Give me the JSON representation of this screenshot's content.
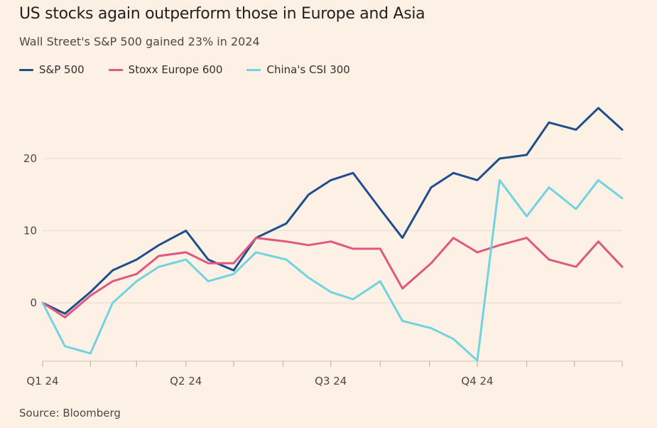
{
  "header": {
    "title": "US stocks again outperform those in Europe and Asia",
    "subtitle": "Wall Street's S&P 500 gained 23% in 2024"
  },
  "footer": {
    "source": "Source: Bloomberg"
  },
  "chart_data": {
    "type": "line",
    "title": "US stocks again outperform those in Europe and Asia",
    "subtitle": "Wall Street's S&P 500 gained 23% in 2024",
    "xlabel": "",
    "ylabel": "",
    "x_tick_labels": [
      "Q1 24",
      "Q2 24",
      "Q3 24",
      "Q4 24"
    ],
    "y_ticks": [
      0,
      10,
      20
    ],
    "ylim": [
      -8,
      27
    ],
    "grid": true,
    "legend": "top-left",
    "x": [
      "2024-01-02",
      "2024-01-16",
      "2024-02-01",
      "2024-02-15",
      "2024-03-01",
      "2024-03-15",
      "2024-04-01",
      "2024-04-15",
      "2024-05-01",
      "2024-05-15",
      "2024-06-03",
      "2024-06-17",
      "2024-07-01",
      "2024-07-15",
      "2024-08-01",
      "2024-08-15",
      "2024-09-02",
      "2024-09-16",
      "2024-10-01",
      "2024-10-15",
      "2024-11-01",
      "2024-11-15",
      "2024-12-02",
      "2024-12-16",
      "2024-12-31"
    ],
    "series": [
      {
        "name": "S&P 500",
        "color": "#1f4e8c",
        "values": [
          0,
          -1.5,
          1.5,
          4.5,
          6,
          8,
          10,
          6,
          4.5,
          9,
          11,
          15,
          17,
          18,
          13,
          9,
          16,
          18,
          17,
          20,
          20.5,
          25,
          24,
          27,
          24
        ]
      },
      {
        "name": "Stoxx Europe 600",
        "color": "#e0577f",
        "values": [
          0,
          -2,
          1,
          3,
          4,
          6.5,
          7,
          5.5,
          5.5,
          9,
          8.5,
          8,
          8.5,
          7.5,
          7.5,
          2,
          5.5,
          9,
          7,
          8,
          9,
          6,
          5,
          8.5,
          5
        ]
      },
      {
        "name": "China's CSI 300",
        "color": "#72d3e0",
        "values": [
          0,
          -6,
          -7,
          0,
          3,
          5,
          6,
          3,
          4,
          7,
          6,
          3.5,
          1.5,
          0.5,
          3,
          -2.5,
          -3.5,
          -5,
          -8,
          17,
          12,
          16,
          13,
          17,
          14.5
        ]
      }
    ]
  }
}
